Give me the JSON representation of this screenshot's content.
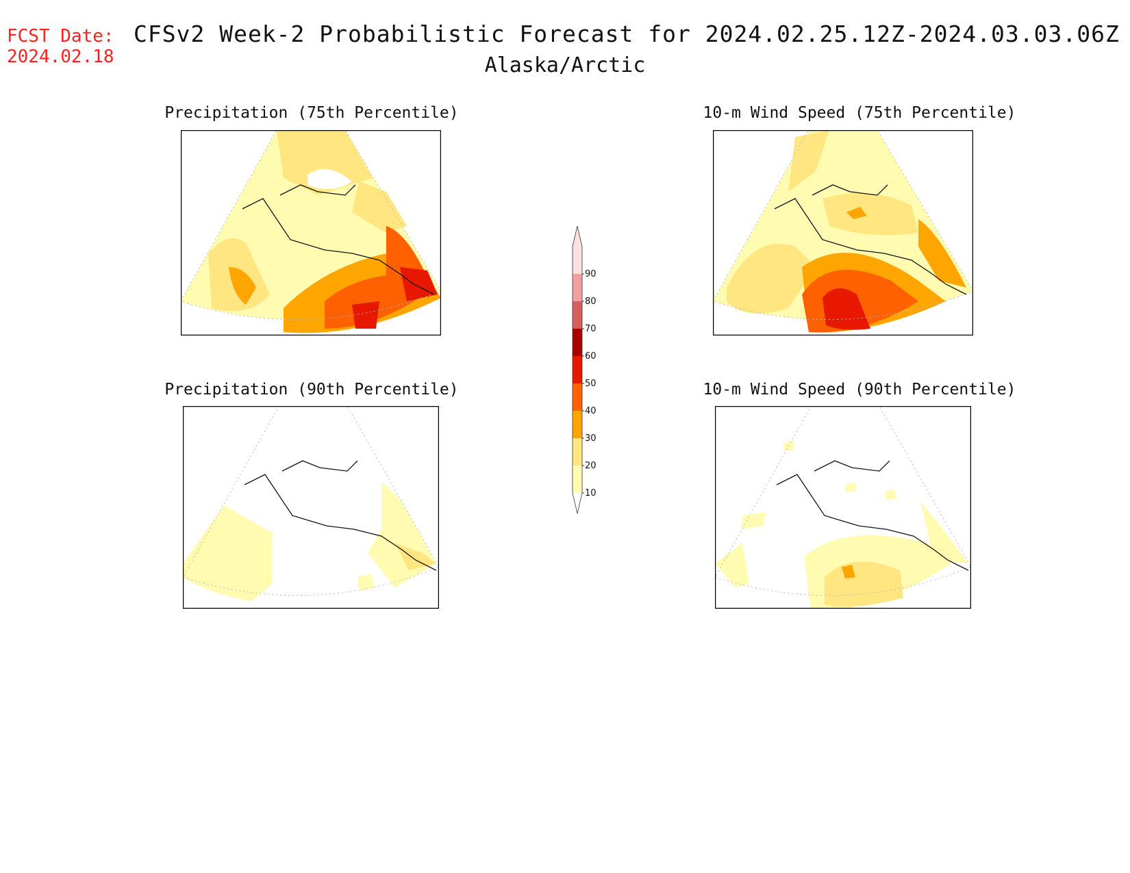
{
  "header": {
    "fcst_label": "FCST Date:",
    "fcst_date": "2024.02.18",
    "title": "CFSv2 Week-2 Probabilistic Forecast for 2024.02.25.12Z-2024.03.03.06Z",
    "subtitle": "Alaska/Arctic"
  },
  "panels": [
    {
      "title": "Precipitation (75th Percentile)"
    },
    {
      "title": "10-m Wind Speed (75th Percentile)"
    },
    {
      "title": "Precipitation (90th Percentile)"
    },
    {
      "title": "10-m Wind Speed (90th Percentile)"
    }
  ],
  "colorbar": {
    "levels": [
      "10",
      "20",
      "30",
      "40",
      "50",
      "60",
      "70",
      "80",
      "90"
    ],
    "colors": [
      "#fffbb0",
      "#ffe680",
      "#ffa500",
      "#ff6000",
      "#e81800",
      "#aa0000",
      "#d46060",
      "#f0a0a0",
      "#fde0e0"
    ]
  },
  "colors": {
    "fcst_text": "#ff2020"
  }
}
